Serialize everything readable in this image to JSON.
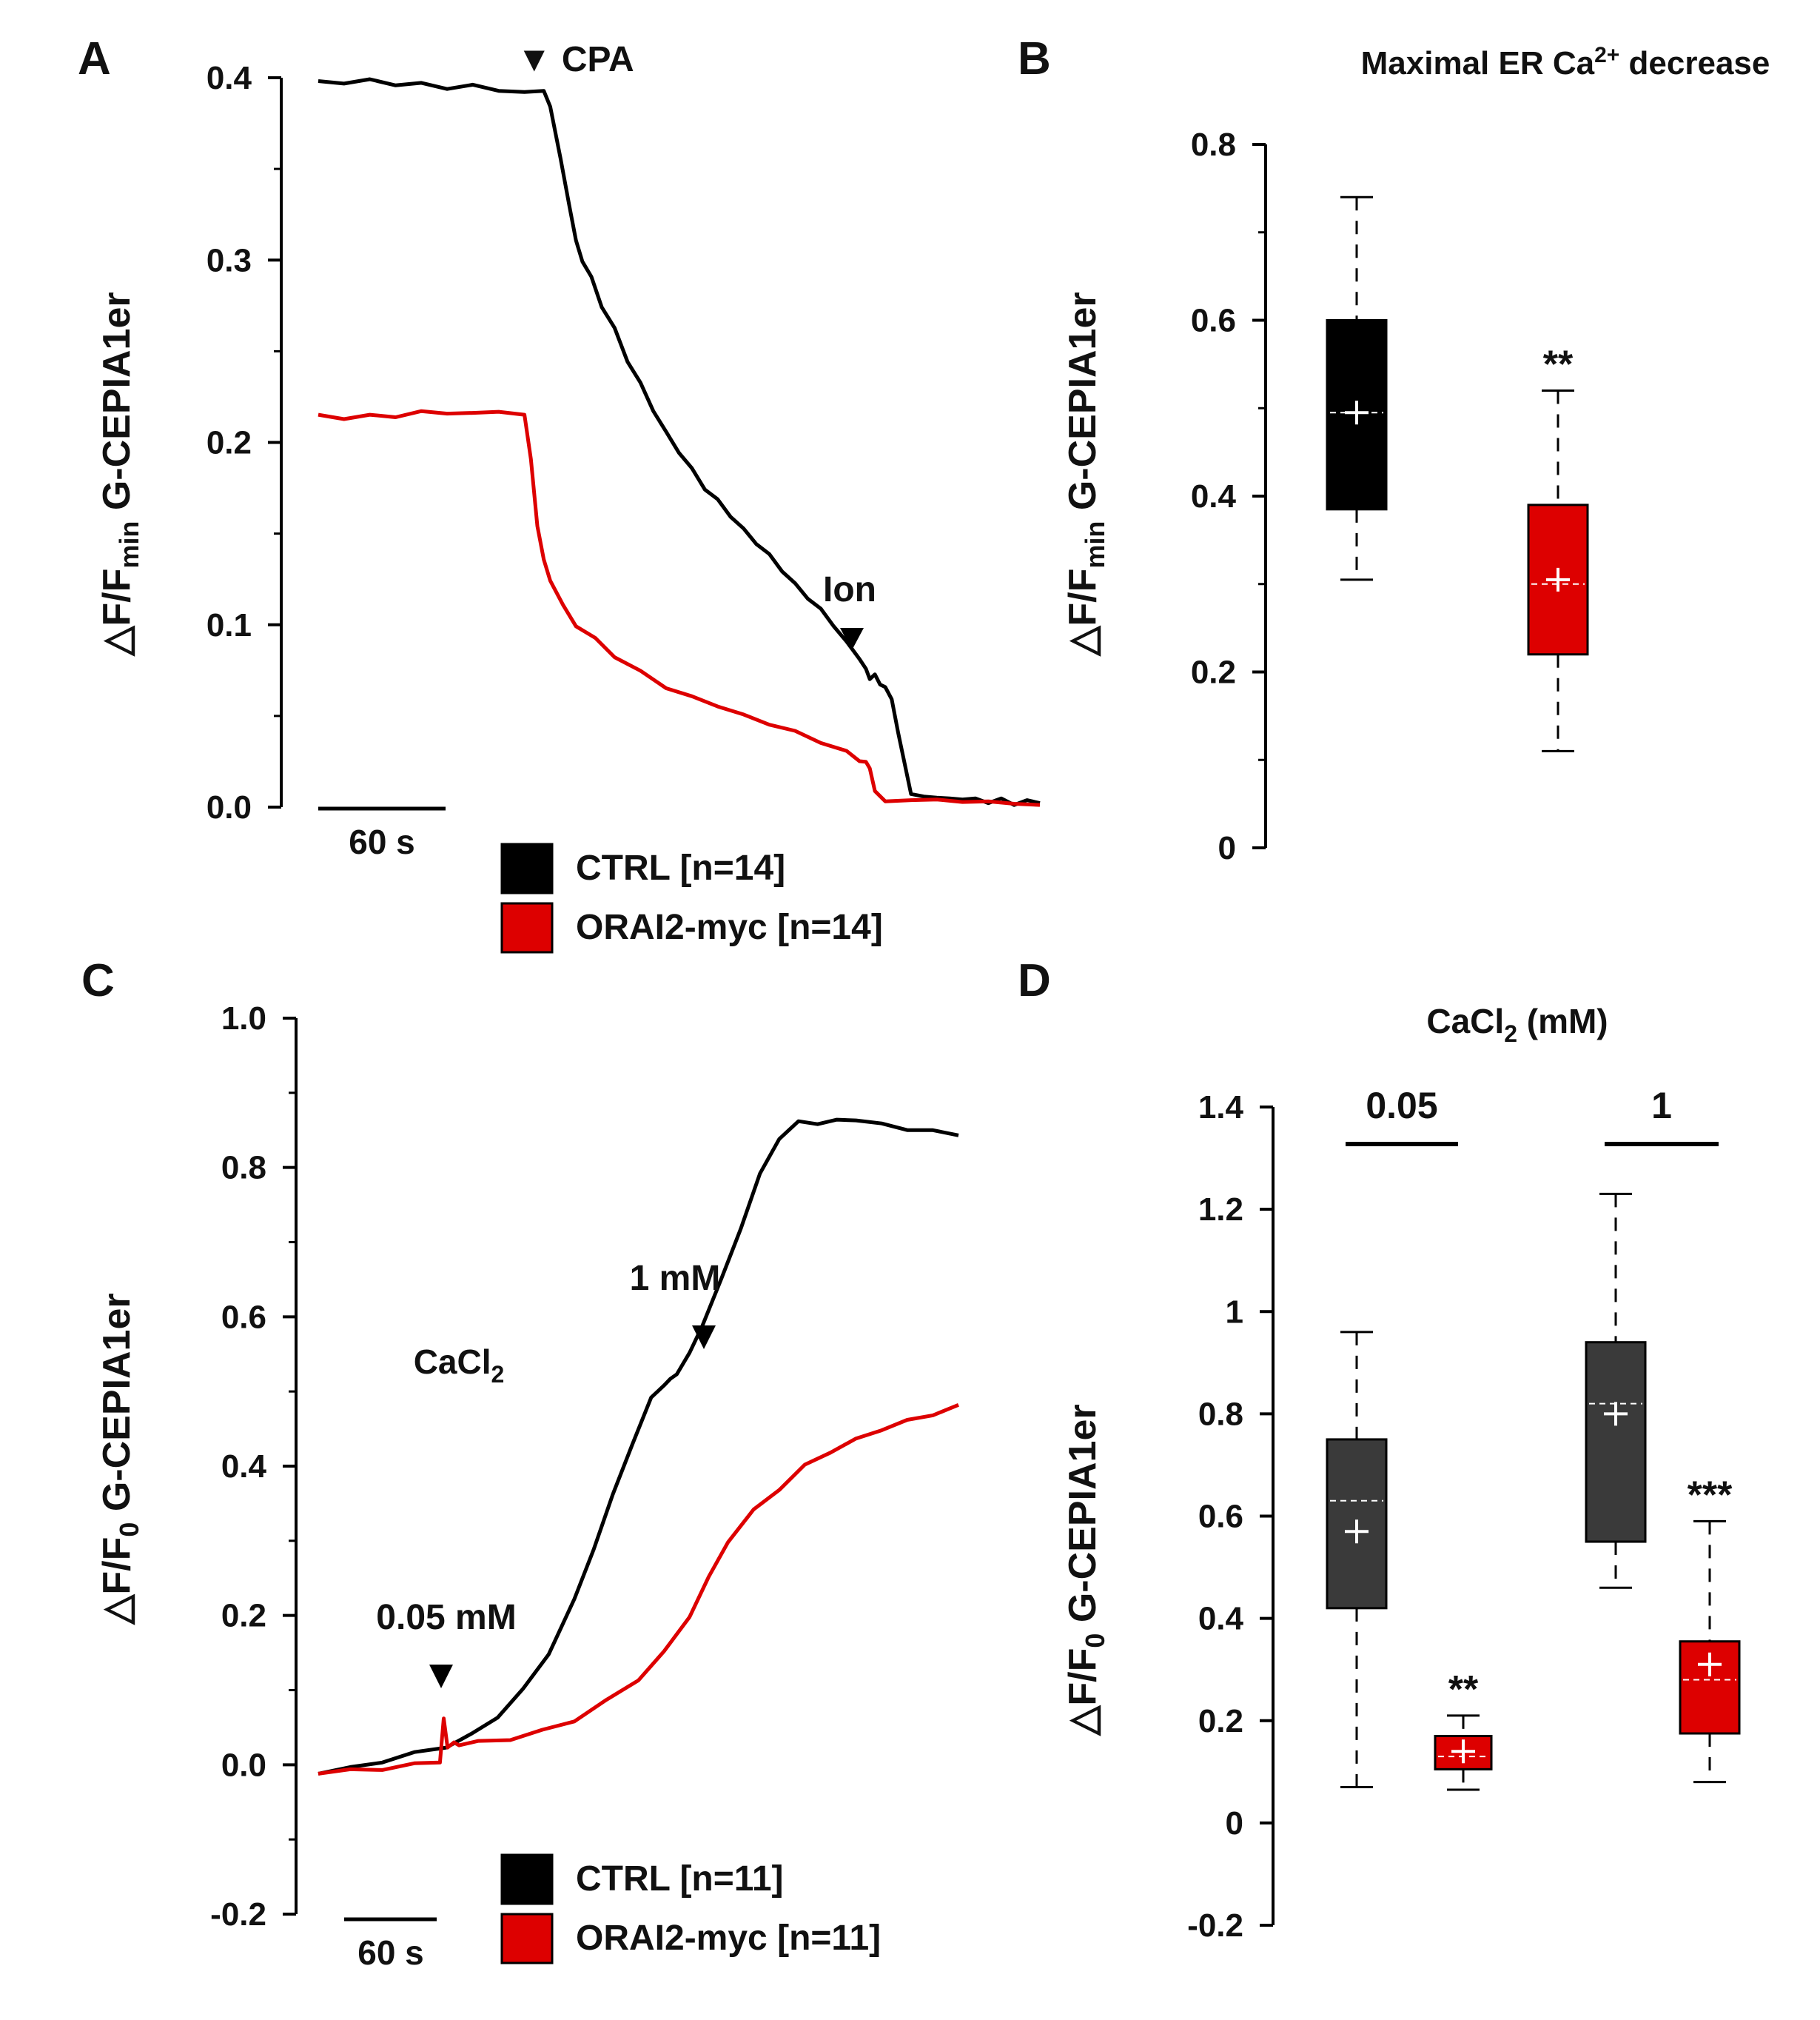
{
  "colors": {
    "ctrl": "#000000",
    "orai": "#dd0000",
    "ctrl_box_D": "#3a3a3a",
    "axis": "#000000"
  },
  "chart_data": [
    {
      "panel": "A",
      "type": "line",
      "xlabel": "",
      "ylabel_main": "△F/F",
      "ylabel_sub": "min",
      "ylabel_rest": " G-CEPIA1er",
      "yticks": [
        "0.0",
        "0.1",
        "0.2",
        "0.3",
        "0.4"
      ],
      "ylim": [
        0,
        0.4
      ],
      "xlim": [
        0,
        560
      ],
      "scalebar_label": "60 s",
      "annotations": [
        {
          "text": "▼ CPA",
          "x": 180
        },
        {
          "text": "Ion",
          "x": 430
        }
      ],
      "legend": [
        {
          "label": "CTRL [n=14]",
          "color": "#000000"
        },
        {
          "label": "ORAI2-myc [n=14]",
          "color": "#dd0000"
        }
      ],
      "series": [
        {
          "name": "CTRL [n=14]",
          "color": "#000000",
          "x": [
            0,
            20,
            40,
            60,
            80,
            100,
            120,
            140,
            160,
            175,
            180,
            188,
            195,
            200,
            205,
            212,
            220,
            230,
            240,
            250,
            260,
            270,
            280,
            290,
            300,
            310,
            320,
            330,
            340,
            350,
            360,
            370,
            380,
            390,
            400,
            410,
            420,
            425,
            428,
            432,
            436,
            440,
            445,
            450,
            460,
            470,
            480,
            490,
            500,
            510,
            520,
            530,
            540,
            550,
            560
          ],
          "y": [
            0.399,
            0.396,
            0.4,
            0.395,
            0.398,
            0.393,
            0.397,
            0.392,
            0.393,
            0.392,
            0.385,
            0.355,
            0.33,
            0.31,
            0.3,
            0.29,
            0.275,
            0.262,
            0.245,
            0.232,
            0.218,
            0.205,
            0.195,
            0.185,
            0.175,
            0.168,
            0.16,
            0.152,
            0.145,
            0.138,
            0.13,
            0.122,
            0.115,
            0.108,
            0.1,
            0.09,
            0.082,
            0.075,
            0.071,
            0.072,
            0.068,
            0.065,
            0.06,
            0.04,
            0.008,
            0.005,
            0.006,
            0.004,
            0.005,
            0.004,
            0.003,
            0.004,
            0.002,
            0.003,
            0.003
          ]
        },
        {
          "name": "ORAI2-myc [n=14]",
          "color": "#dd0000",
          "x": [
            0,
            20,
            40,
            60,
            80,
            100,
            120,
            140,
            160,
            165,
            170,
            175,
            180,
            190,
            200,
            215,
            230,
            250,
            270,
            290,
            310,
            330,
            350,
            370,
            390,
            410,
            420,
            425,
            428,
            432,
            440,
            460,
            480,
            500,
            520,
            540,
            560
          ],
          "y": [
            0.216,
            0.212,
            0.216,
            0.213,
            0.218,
            0.215,
            0.217,
            0.216,
            0.216,
            0.19,
            0.155,
            0.135,
            0.125,
            0.11,
            0.1,
            0.092,
            0.083,
            0.074,
            0.066,
            0.06,
            0.056,
            0.05,
            0.046,
            0.041,
            0.036,
            0.03,
            0.026,
            0.024,
            0.022,
            0.008,
            0.004,
            0.003,
            0.005,
            0.002,
            0.004,
            0.001,
            0.002
          ]
        }
      ]
    },
    {
      "panel": "B",
      "type": "box",
      "title": "Maximal ER Ca",
      "title_sup": "2+",
      "title_rest": " decrease",
      "ylabel_main": "△F/F",
      "ylabel_sub": "min",
      "ylabel_rest": " G-CEPIA1er",
      "yticks": [
        "0",
        "0.2",
        "0.4",
        "0.6",
        "0.8"
      ],
      "ylim": [
        0,
        0.8
      ],
      "boxes": [
        {
          "name": "CTRL",
          "color": "#000000",
          "whisker_low": 0.305,
          "q1": 0.385,
          "median": 0.495,
          "mean": 0.495,
          "q3": 0.6,
          "whisker_high": 0.74,
          "sig": ""
        },
        {
          "name": "ORAI2-myc",
          "color": "#dd0000",
          "whisker_low": 0.11,
          "q1": 0.22,
          "median": 0.3,
          "mean": 0.305,
          "q3": 0.39,
          "whisker_high": 0.52,
          "sig": "**"
        }
      ]
    },
    {
      "panel": "C",
      "type": "line",
      "ylabel_main": "△F/F",
      "ylabel_sub": "0",
      "ylabel_rest": " G-CEPIA1er",
      "yticks": [
        "-0.2",
        "0.0",
        "0.2",
        "0.4",
        "0.6",
        "0.8",
        "1.0"
      ],
      "ylim": [
        -0.2,
        1.0
      ],
      "xlim": [
        0,
        500
      ],
      "scalebar_label": "60 s",
      "cacl2_main": "CaCl",
      "cacl2_sub": "2",
      "annotations": [
        {
          "text": "0.05 mM",
          "x": 100
        },
        {
          "text": "1 mM",
          "x": 275
        }
      ],
      "legend": [
        {
          "label": "CTRL [n=11]",
          "color": "#000000"
        },
        {
          "label": "ORAI2-myc [n=11]",
          "color": "#dd0000"
        }
      ],
      "series": [
        {
          "name": "CTRL [n=11]",
          "color": "#000000",
          "x": [
            0,
            25,
            50,
            75,
            100,
            120,
            140,
            160,
            180,
            200,
            215,
            230,
            245,
            260,
            270,
            275,
            280,
            290,
            300,
            315,
            330,
            345,
            360,
            375,
            390,
            405,
            420,
            440,
            460,
            480,
            500
          ],
          "y": [
            -0.01,
            -0.005,
            0.005,
            0.015,
            0.025,
            0.04,
            0.065,
            0.1,
            0.15,
            0.22,
            0.29,
            0.36,
            0.43,
            0.49,
            0.51,
            0.515,
            0.525,
            0.55,
            0.59,
            0.65,
            0.72,
            0.79,
            0.84,
            0.86,
            0.86,
            0.862,
            0.865,
            0.857,
            0.852,
            0.848,
            0.845
          ]
        },
        {
          "name": "ORAI2-myc [n=11]",
          "color": "#dd0000",
          "x": [
            0,
            25,
            50,
            75,
            95,
            98,
            101,
            106,
            110,
            125,
            150,
            175,
            200,
            225,
            250,
            270,
            290,
            305,
            320,
            340,
            360,
            380,
            400,
            420,
            440,
            460,
            480,
            500
          ],
          "y": [
            -0.01,
            -0.008,
            -0.005,
            0.0,
            0.005,
            0.06,
            0.025,
            0.028,
            0.028,
            0.03,
            0.035,
            0.045,
            0.06,
            0.085,
            0.115,
            0.15,
            0.2,
            0.25,
            0.3,
            0.34,
            0.37,
            0.4,
            0.42,
            0.435,
            0.45,
            0.46,
            0.47,
            0.48
          ]
        }
      ]
    },
    {
      "panel": "D",
      "type": "box",
      "title_main": "CaCl",
      "title_sub": "2",
      "title_rest": " (mM)",
      "group_labels": [
        "0.05",
        "1"
      ],
      "ylabel_main": "△F/F",
      "ylabel_sub": "0",
      "ylabel_rest": " G-CEPIA1er",
      "yticks": [
        "-0.2",
        "0",
        "0.2",
        "0.4",
        "0.6",
        "0.8",
        "1",
        "1.2",
        "1.4"
      ],
      "ylim": [
        -0.2,
        1.4
      ],
      "boxes": [
        {
          "name": "CTRL 0.05 mM",
          "color": "#3a3a3a",
          "whisker_low": 0.07,
          "q1": 0.42,
          "median": 0.63,
          "mean": 0.57,
          "q3": 0.75,
          "whisker_high": 0.96,
          "sig": ""
        },
        {
          "name": "ORAI2-myc 0.05 mM",
          "color": "#dd0000",
          "whisker_low": 0.065,
          "q1": 0.105,
          "median": 0.13,
          "mean": 0.14,
          "q3": 0.17,
          "whisker_high": 0.21,
          "sig": "**"
        },
        {
          "name": "CTRL 1 mM",
          "color": "#3a3a3a",
          "whisker_low": 0.46,
          "q1": 0.55,
          "median": 0.82,
          "mean": 0.8,
          "q3": 0.94,
          "whisker_high": 1.23,
          "sig": ""
        },
        {
          "name": "ORAI2-myc 1 mM",
          "color": "#dd0000",
          "whisker_low": 0.08,
          "q1": 0.175,
          "median": 0.28,
          "mean": 0.31,
          "q3": 0.355,
          "whisker_high": 0.59,
          "sig": "***"
        }
      ]
    }
  ],
  "panel_labels": [
    "A",
    "B",
    "C",
    "D"
  ]
}
